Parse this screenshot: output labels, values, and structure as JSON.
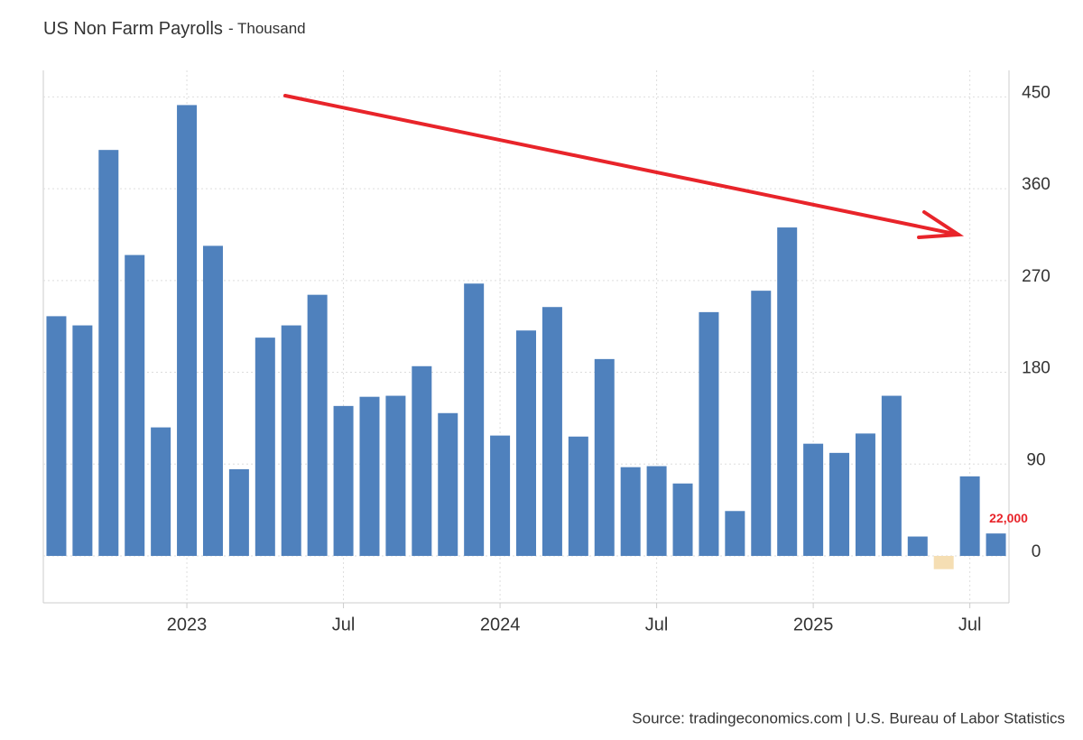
{
  "chart_data": {
    "type": "bar",
    "title": "US Non Farm Payrolls",
    "subtitle": "- Thousand",
    "source": "Source: tradingeconomics.com | U.S. Bureau of Labor Statistics",
    "categories": [
      null,
      null,
      null,
      null,
      null,
      "2023",
      null,
      null,
      null,
      null,
      null,
      "Jul",
      null,
      null,
      null,
      null,
      null,
      "2024",
      null,
      null,
      null,
      null,
      null,
      "Jul",
      null,
      null,
      null,
      null,
      null,
      "2025",
      null,
      null,
      null,
      null,
      null,
      "Jul",
      null
    ],
    "values": [
      235,
      226,
      398,
      295,
      126,
      442,
      304,
      85,
      214,
      226,
      256,
      147,
      156,
      157,
      186,
      140,
      267,
      118,
      221,
      244,
      117,
      193,
      87,
      88,
      71,
      239,
      44,
      260,
      322,
      110,
      101,
      120,
      157,
      19,
      -13,
      78,
      22
    ],
    "value_labels": [
      null,
      null,
      null,
      null,
      null,
      null,
      null,
      null,
      null,
      null,
      null,
      null,
      null,
      null,
      null,
      null,
      null,
      null,
      null,
      null,
      null,
      null,
      null,
      null,
      null,
      null,
      null,
      null,
      null,
      null,
      null,
      null,
      null,
      null,
      null,
      null,
      "22,000"
    ],
    "color": "#4f81bd",
    "negative_color": "#f5deb3",
    "ylim": [
      -46,
      476
    ],
    "yticks": [
      0,
      90,
      180,
      270,
      360,
      450
    ],
    "grid": true
  }
}
